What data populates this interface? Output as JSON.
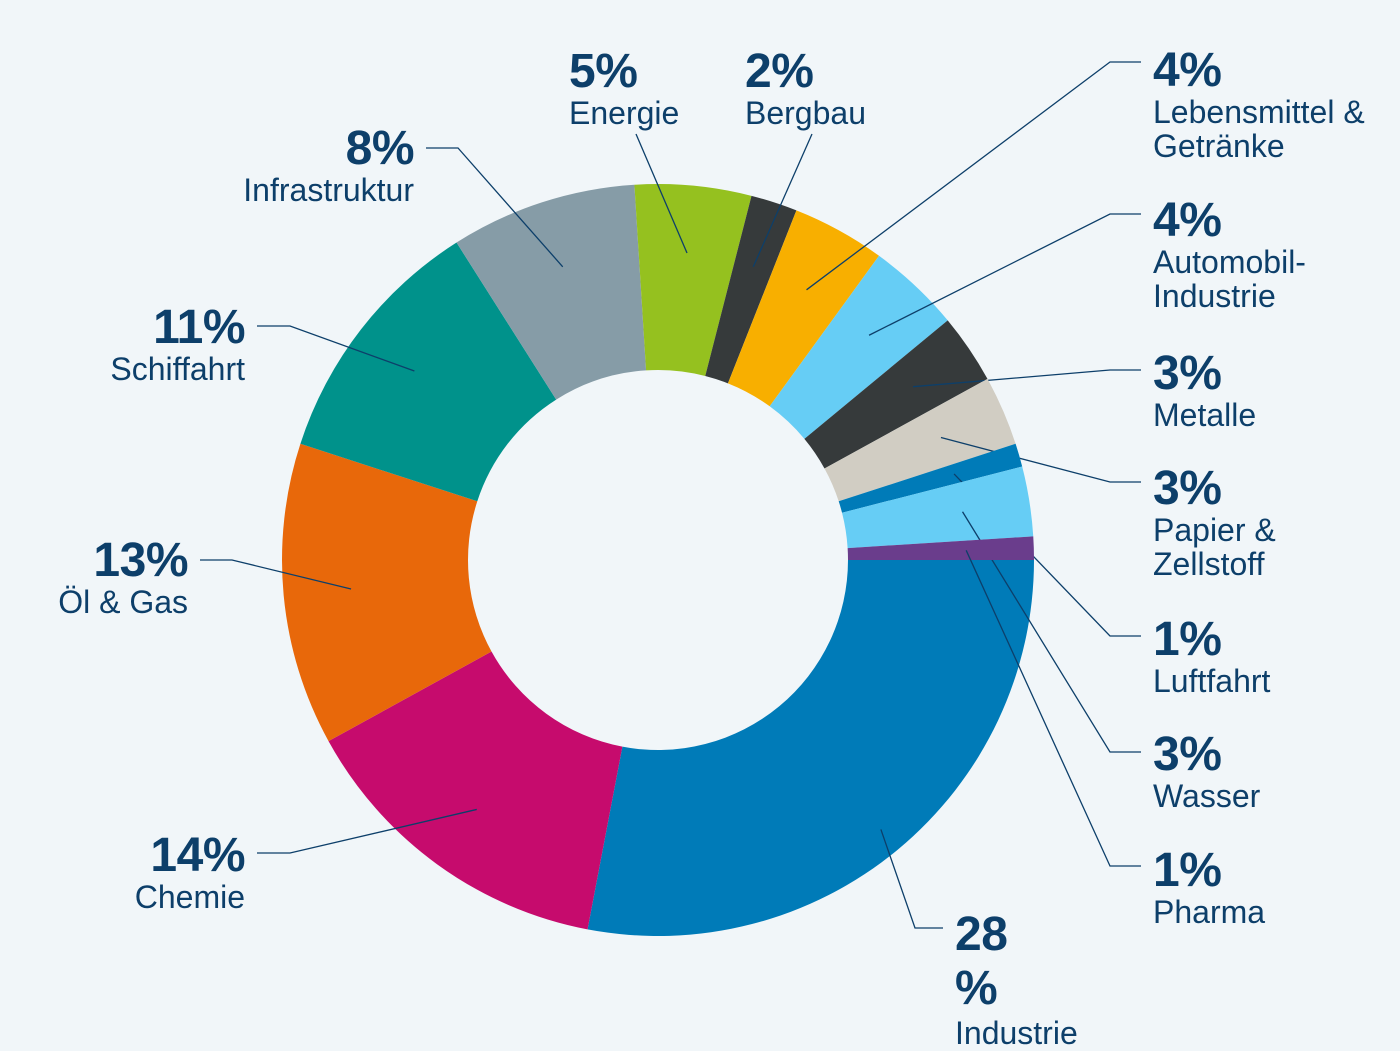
{
  "chart_data": {
    "type": "pie",
    "variant": "donut",
    "slices": [
      {
        "label": "Industrie",
        "value": 28,
        "value_label": "28\n%",
        "color": "#007bb8"
      },
      {
        "label": "Chemie",
        "value": 14,
        "value_label": "14%",
        "color": "#c60b6d"
      },
      {
        "label": "Öl & Gas",
        "value": 13,
        "value_label": "13%",
        "color": "#e8680a"
      },
      {
        "label": "Schiffahrt",
        "value": 11,
        "value_label": "11%",
        "color": "#00928b"
      },
      {
        "label": "Infrastruktur",
        "value": 8,
        "value_label": "8%",
        "color": "#869ca7"
      },
      {
        "label": "Energie",
        "value": 5,
        "value_label": "5%",
        "color": "#95c11f"
      },
      {
        "label": "Bergbau",
        "value": 2,
        "value_label": "2%",
        "color": "#363a3b"
      },
      {
        "label": "Lebensmittel &\nGetränke",
        "value": 4,
        "value_label": "4%",
        "color": "#f8af00"
      },
      {
        "label": "Automobil-\nIndustrie",
        "value": 4,
        "value_label": "4%",
        "color": "#66cdf5"
      },
      {
        "label": "Metalle",
        "value": 3,
        "value_label": "3%",
        "color": "#363a3b"
      },
      {
        "label": "Papier &\nZellstoff",
        "value": 3,
        "value_label": "3%",
        "color": "#d1cdc3"
      },
      {
        "label": "Luftfahrt",
        "value": 1,
        "value_label": "1%",
        "color": "#007bb8"
      },
      {
        "label": "Wasser",
        "value": 3,
        "value_label": "3%",
        "color": "#66cdf5"
      },
      {
        "label": "Pharma",
        "value": 1,
        "value_label": "1%",
        "color": "#6a3d8c"
      }
    ],
    "label_color": "#0d3f6a",
    "leader_line_color": "#0d3f6a"
  }
}
